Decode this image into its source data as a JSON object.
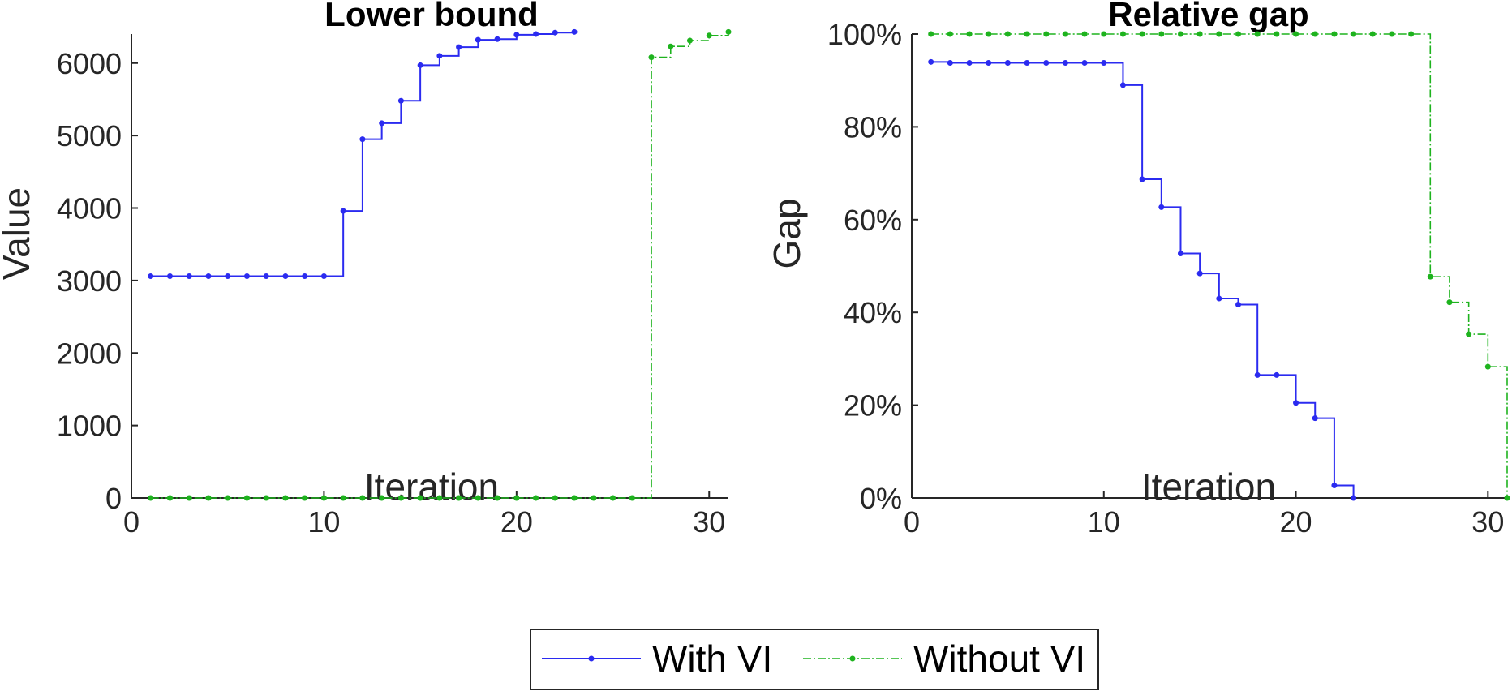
{
  "legend": {
    "with_vi": "With VI",
    "without_vi": "Without VI"
  },
  "colors": {
    "with_vi": "#2b2bf0",
    "without_vi": "#1eb31e"
  },
  "chart_data": [
    {
      "type": "line",
      "step": true,
      "title": "Lower bound",
      "xlabel": "Iteration",
      "ylabel": "Value",
      "xlim": [
        0,
        31
      ],
      "ylim": [
        0,
        6400
      ],
      "xticks": [
        0,
        10,
        20,
        30
      ],
      "yticks": [
        0,
        1000,
        2000,
        3000,
        4000,
        5000,
        6000
      ],
      "ytick_labels": [
        "0",
        "1000",
        "2000",
        "3000",
        "4000",
        "5000",
        "6000"
      ],
      "series": [
        {
          "name": "With VI",
          "x": [
            1,
            2,
            3,
            4,
            5,
            6,
            7,
            8,
            9,
            10,
            11,
            12,
            13,
            14,
            15,
            16,
            17,
            18,
            19,
            20,
            21,
            22,
            23
          ],
          "values": [
            3060,
            3060,
            3060,
            3060,
            3060,
            3060,
            3060,
            3060,
            3060,
            3060,
            3960,
            4950,
            5170,
            5480,
            5970,
            6100,
            6220,
            6320,
            6330,
            6390,
            6400,
            6420,
            6430
          ]
        },
        {
          "name": "Without VI",
          "x": [
            1,
            2,
            3,
            4,
            5,
            6,
            7,
            8,
            9,
            10,
            11,
            12,
            13,
            14,
            15,
            16,
            17,
            18,
            19,
            20,
            21,
            22,
            23,
            24,
            25,
            26,
            27,
            28,
            29,
            30,
            31
          ],
          "values": [
            0,
            0,
            0,
            0,
            0,
            0,
            0,
            0,
            0,
            0,
            0,
            0,
            0,
            0,
            0,
            0,
            0,
            0,
            0,
            0,
            0,
            0,
            0,
            0,
            0,
            0,
            6080,
            6230,
            6310,
            6380,
            6430
          ]
        }
      ]
    },
    {
      "type": "line",
      "step": true,
      "title": "Relative gap",
      "xlabel": "Iteration",
      "ylabel": "Gap",
      "xlim": [
        0,
        31
      ],
      "ylim": [
        0,
        100
      ],
      "xticks": [
        0,
        10,
        20,
        30
      ],
      "yticks": [
        0,
        20,
        40,
        60,
        80,
        100
      ],
      "ytick_labels": [
        "0%",
        "20%",
        "40%",
        "60%",
        "80%",
        "100%"
      ],
      "series": [
        {
          "name": "With VI",
          "x": [
            1,
            2,
            3,
            4,
            5,
            6,
            7,
            8,
            9,
            10,
            11,
            12,
            13,
            14,
            15,
            16,
            17,
            18,
            19,
            20,
            21,
            22,
            23
          ],
          "values": [
            94,
            93.8,
            93.8,
            93.8,
            93.8,
            93.8,
            93.8,
            93.8,
            93.8,
            93.8,
            89,
            68.7,
            62.7,
            52.7,
            48.4,
            43,
            41.7,
            26.5,
            26.5,
            20.5,
            17.2,
            2.7,
            0
          ]
        },
        {
          "name": "Without VI",
          "x": [
            1,
            2,
            3,
            4,
            5,
            6,
            7,
            8,
            9,
            10,
            11,
            12,
            13,
            14,
            15,
            16,
            17,
            18,
            19,
            20,
            21,
            22,
            23,
            24,
            25,
            26,
            27,
            28,
            29,
            30,
            31
          ],
          "values": [
            100,
            100,
            100,
            100,
            100,
            100,
            100,
            100,
            100,
            100,
            100,
            100,
            100,
            100,
            100,
            100,
            100,
            100,
            100,
            100,
            100,
            100,
            100,
            100,
            100,
            100,
            47.7,
            42.2,
            35.3,
            28.3,
            0
          ]
        }
      ]
    }
  ]
}
